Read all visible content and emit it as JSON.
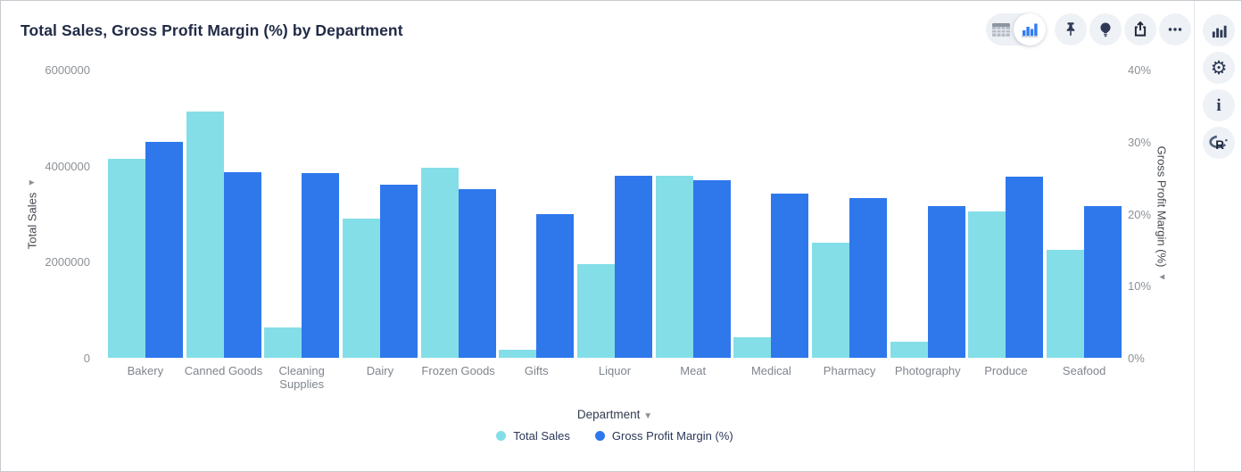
{
  "header": {
    "title": "Total Sales, Gross Profit Margin (%) by Department"
  },
  "toolbar": {
    "view_toggle": {
      "options": [
        {
          "name": "table-view",
          "icon": "table-icon",
          "selected": false
        },
        {
          "name": "chart-view",
          "icon": "bar-chart-icon",
          "selected": true
        }
      ]
    },
    "buttons": [
      {
        "name": "pin",
        "icon": "pin-icon"
      },
      {
        "name": "insights",
        "icon": "lightbulb-icon"
      },
      {
        "name": "export",
        "icon": "export-icon"
      },
      {
        "name": "more-options",
        "icon": "ellipsis-icon"
      }
    ]
  },
  "sidebar": {
    "buttons": [
      {
        "name": "chart-options",
        "icon": "bar-chart-icon"
      },
      {
        "name": "settings",
        "icon": "gear-icon"
      },
      {
        "name": "info",
        "icon": "info-icon"
      },
      {
        "name": "r-logo",
        "icon": "r-logo-icon"
      }
    ]
  },
  "colors": {
    "total_sales": "#84dee8",
    "gross_profit_margin": "#2e78ec",
    "icon_navy": "#2e3a55",
    "tick_gray": "#8c9197"
  },
  "chart_data": {
    "type": "bar",
    "title": "Total Sales, Gross Profit Margin (%) by Department",
    "categories": [
      "Bakery",
      "Canned Goods",
      "Cleaning Supplies",
      "Dairy",
      "Frozen Goods",
      "Gifts",
      "Liquor",
      "Meat",
      "Medical",
      "Pharmacy",
      "Photography",
      "Produce",
      "Seafood"
    ],
    "series": [
      {
        "name": "Total Sales",
        "axis": "left",
        "color": "#84dee8",
        "values": [
          4140000,
          5130000,
          630000,
          2900000,
          3960000,
          175000,
          1950000,
          3790000,
          435000,
          2400000,
          330000,
          3040000,
          2250000
        ]
      },
      {
        "name": "Gross Profit Margin (%)",
        "axis": "right",
        "color": "#2e78ec",
        "values": [
          30.0,
          25.8,
          25.7,
          24.0,
          23.4,
          20.0,
          25.3,
          24.6,
          22.8,
          22.2,
          21.0,
          25.2,
          21.0
        ]
      }
    ],
    "left_axis": {
      "label": "Total Sales",
      "range": [
        0,
        6000000
      ],
      "tick_values": [
        0,
        2000000,
        4000000,
        6000000
      ],
      "tick_labels": [
        "0",
        "2000000",
        "4000000",
        "6000000"
      ]
    },
    "right_axis": {
      "label": "Gross Profit Margin (%)",
      "range": [
        0,
        40
      ],
      "tick_values": [
        0,
        10,
        20,
        30,
        40
      ],
      "tick_labels": [
        "0%",
        "10%",
        "20%",
        "30%",
        "40%"
      ]
    },
    "x_axis": {
      "label": "Department"
    },
    "legend": {
      "position": "bottom",
      "entries": [
        "Total Sales",
        "Gross Profit Margin (%)"
      ]
    },
    "grid": false
  }
}
